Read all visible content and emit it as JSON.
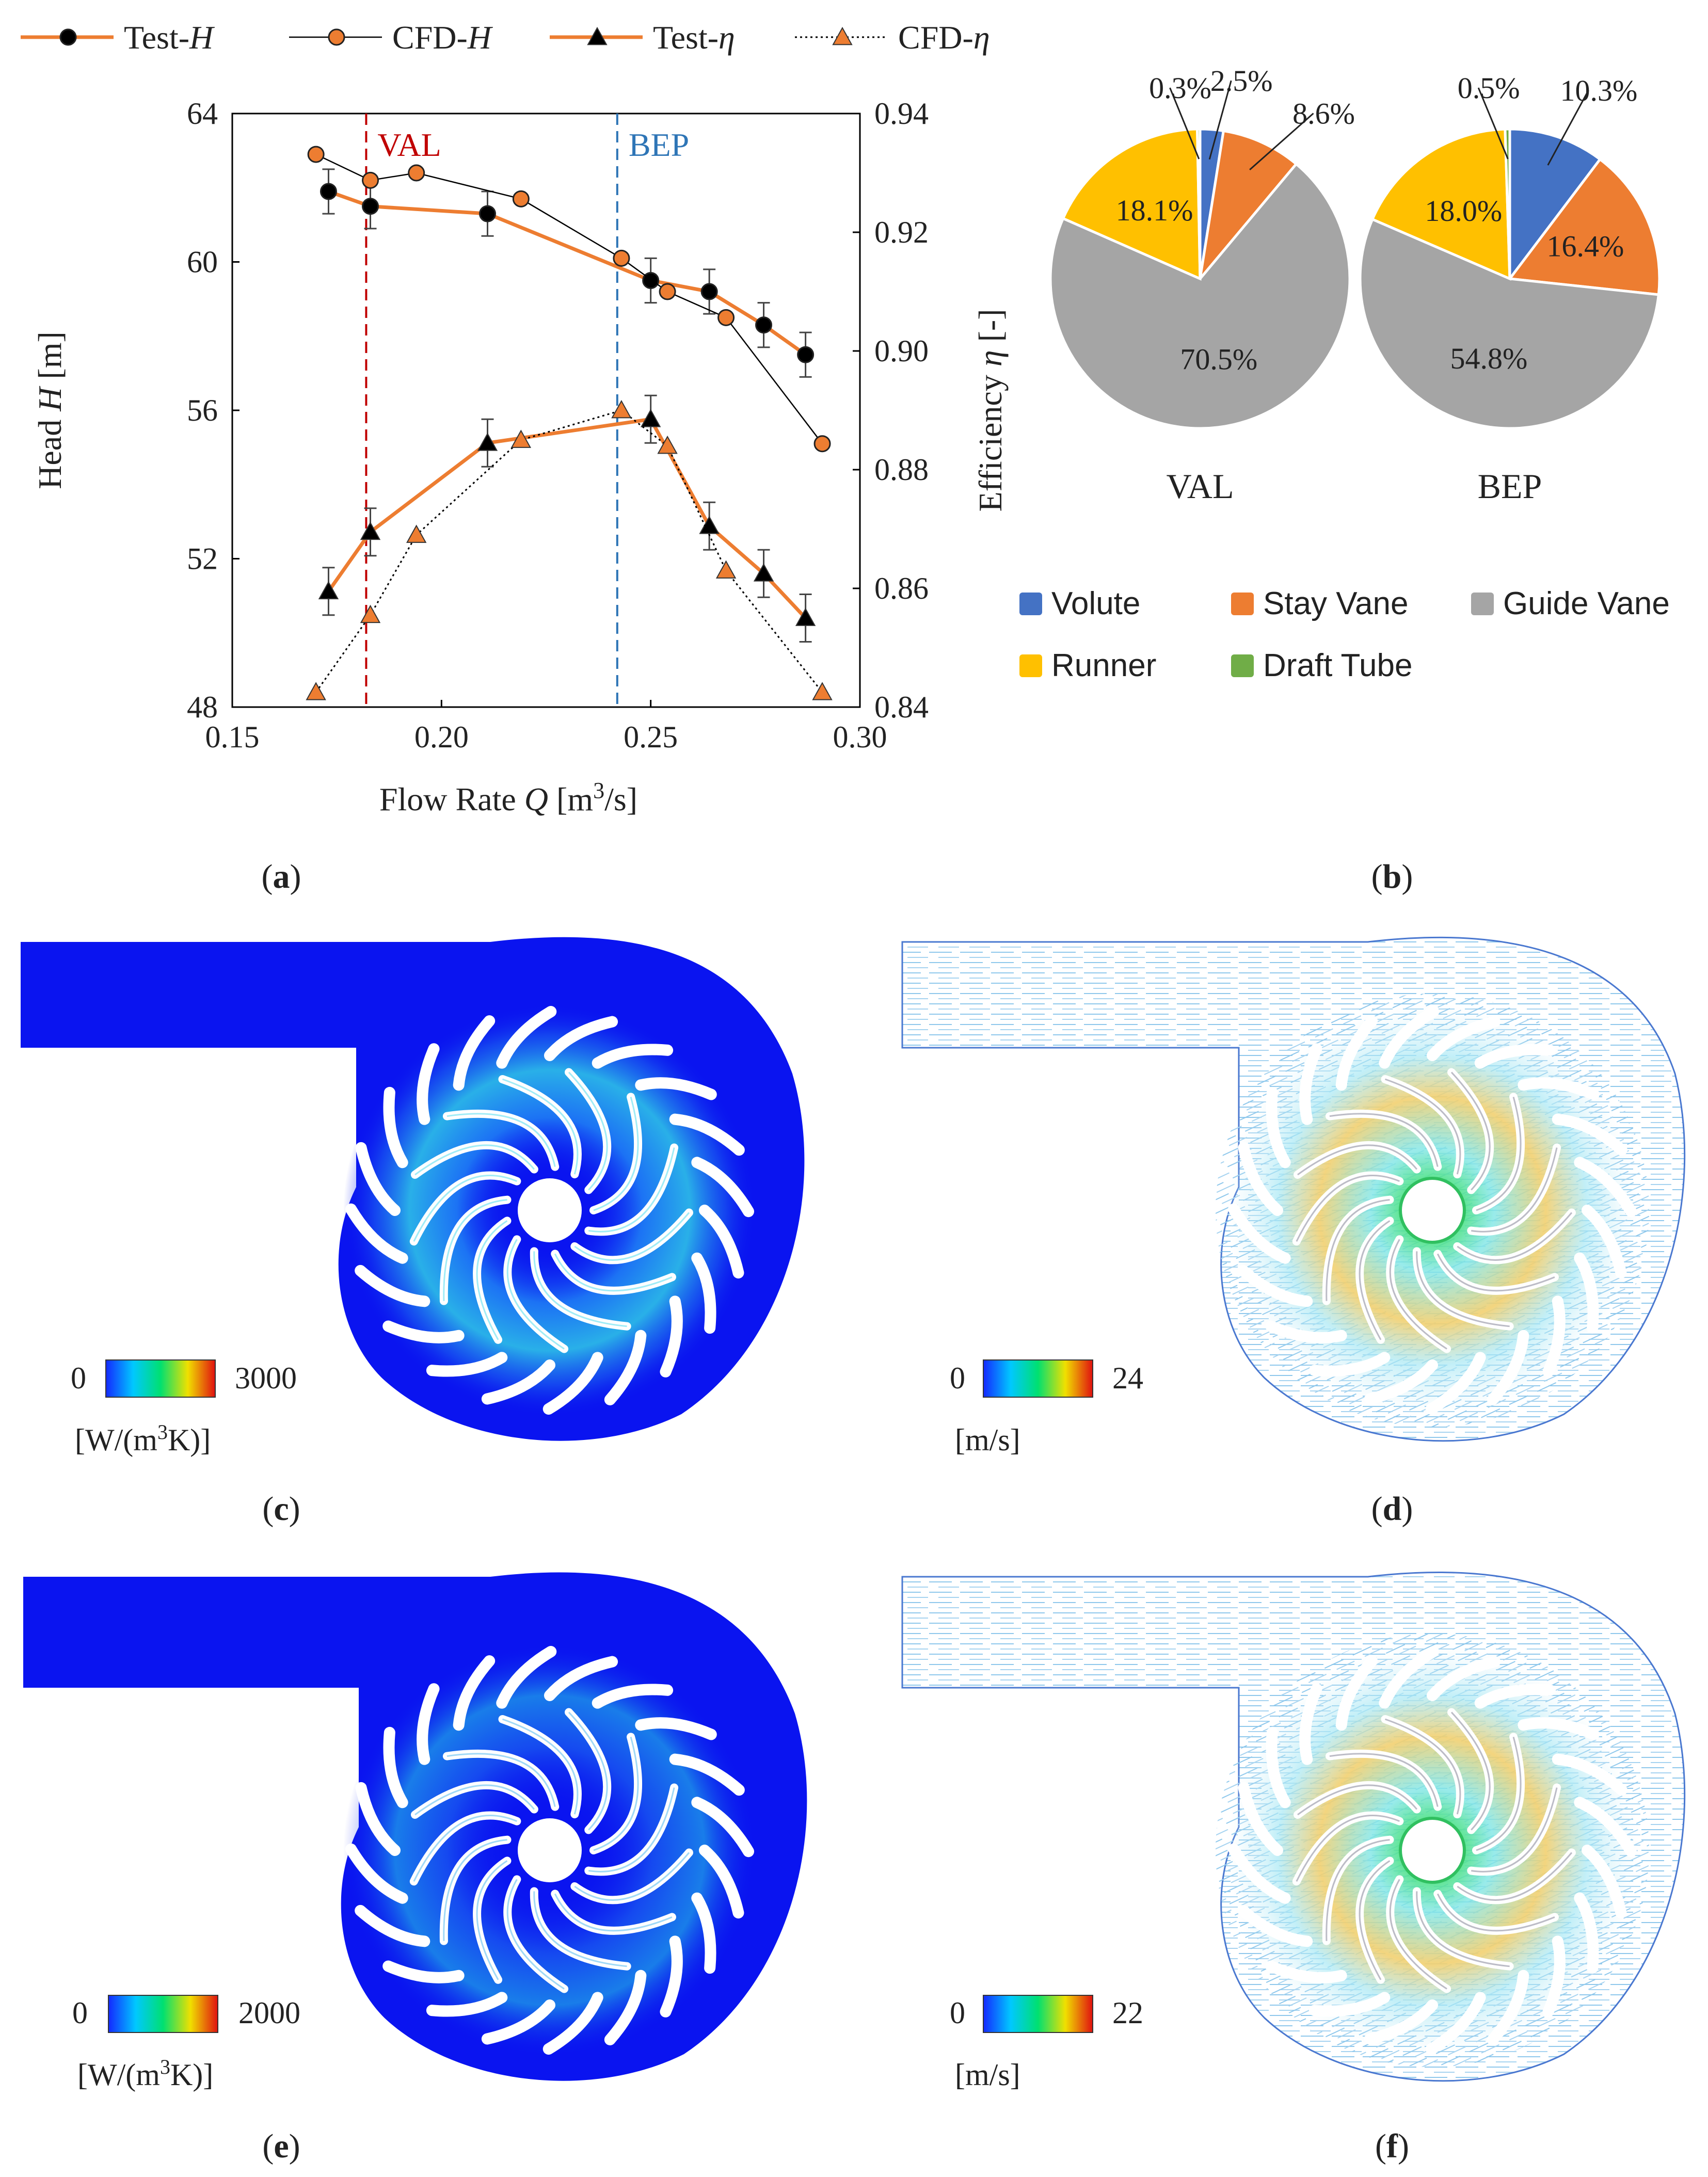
{
  "panels": {
    "a": "a",
    "b": "b",
    "c": "c",
    "d": "d",
    "e": "e",
    "f": "f"
  },
  "colors": {
    "orange": "#ED7D31",
    "black": "#000000",
    "val_line": "#C00000",
    "bep_line": "#2E75B6",
    "volute": "#4472C4",
    "stay_vane": "#ED7D31",
    "guide_vane": "#A5A5A5",
    "runner": "#FFC000",
    "draft_tube": "#70AD47",
    "contour_bg": "#0A14F0"
  },
  "chart_data": [
    {
      "type": "line",
      "panel": "a",
      "xlabel_prefix": "Flow Rate ",
      "xlabel_var": "Q",
      "xlabel_unit": " [m",
      "xlabel_sup": "3",
      "xlabel_end": "/s]",
      "ylabel_prefix": "Head ",
      "ylabel_var": "H",
      "ylabel_unit": " [m]",
      "y2label_prefix": "Efficiency ",
      "y2label_var": "η",
      "y2label_unit": " [-]",
      "xlim": [
        0.15,
        0.3
      ],
      "ylim": [
        48,
        64
      ],
      "y2lim": [
        0.84,
        0.94
      ],
      "xticks": [
        "0.15",
        "0.20",
        "0.25",
        "0.30"
      ],
      "yticks": [
        "48",
        "52",
        "56",
        "60",
        "64"
      ],
      "y2ticks": [
        "0.84",
        "0.86",
        "0.88",
        "0.90",
        "0.92",
        "0.94"
      ],
      "vlines": [
        {
          "label": "VAL",
          "x": 0.182
        },
        {
          "label": "BEP",
          "x": 0.242
        }
      ],
      "series": [
        {
          "name": "Test-H",
          "name_base": "Test-",
          "name_var": "H",
          "axis": "left",
          "marker": "circle-black",
          "line": "orange-solid",
          "x": [
            0.173,
            0.183,
            0.211,
            0.25,
            0.264,
            0.277,
            0.287
          ],
          "y": [
            61.9,
            61.5,
            61.3,
            59.5,
            59.2,
            58.3,
            57.5
          ],
          "err": [
            0.6,
            0.6,
            0.6,
            0.6,
            0.6,
            0.6,
            0.6
          ]
        },
        {
          "name": "CFD-H",
          "name_base": "CFD-",
          "name_var": "H",
          "axis": "left",
          "marker": "circle-orange",
          "line": "black-thin",
          "x": [
            0.17,
            0.183,
            0.194,
            0.219,
            0.243,
            0.254,
            0.268,
            0.291
          ],
          "y": [
            62.9,
            62.2,
            62.4,
            61.7,
            60.1,
            59.2,
            58.5,
            55.1
          ]
        },
        {
          "name": "Test-η",
          "name_base": "Test-",
          "name_var": "η",
          "axis": "right",
          "marker": "triangle-black",
          "line": "orange-solid",
          "x": [
            0.173,
            0.183,
            0.211,
            0.25,
            0.264,
            0.277,
            0.287
          ],
          "y": [
            0.8595,
            0.8695,
            0.8845,
            0.8885,
            0.8705,
            0.8625,
            0.855
          ],
          "err": [
            0.004,
            0.004,
            0.004,
            0.004,
            0.004,
            0.004,
            0.004
          ]
        },
        {
          "name": "CFD-η",
          "name_base": "CFD-",
          "name_var": "η",
          "axis": "right",
          "marker": "triangle-orange",
          "line": "black-dotted",
          "x": [
            0.17,
            0.183,
            0.194,
            0.219,
            0.243,
            0.254,
            0.268,
            0.291
          ],
          "y": [
            0.8425,
            0.8555,
            0.869,
            0.885,
            0.89,
            0.884,
            0.863,
            0.8425
          ]
        }
      ]
    },
    {
      "type": "pie",
      "panel": "b",
      "charts": [
        {
          "title": "VAL",
          "values": [
            2.5,
            8.6,
            70.5,
            18.1,
            0.3
          ],
          "labels": [
            "2.5%",
            "8.6%",
            "70.5%",
            "18.1%",
            "0.3%"
          ]
        },
        {
          "title": "BEP",
          "values": [
            10.3,
            16.4,
            54.8,
            18.0,
            0.5
          ],
          "labels": [
            "10.3%",
            "16.4%",
            "54.8%",
            "18.0%",
            "0.5%"
          ]
        }
      ],
      "legend": [
        "Volute",
        "Stay Vane",
        "Guide Vane",
        "Runner",
        "Draft Tube"
      ]
    }
  ],
  "contours": [
    {
      "panel": "c",
      "kind": "heat",
      "min": "0",
      "max": "3000",
      "unit_pre": "[W/(m",
      "unit_sup": "3",
      "unit_post": "K)]"
    },
    {
      "panel": "d",
      "kind": "vector",
      "min": "0",
      "max": "24",
      "unit": "[m/s]"
    },
    {
      "panel": "e",
      "kind": "heat",
      "min": "0",
      "max": "2000",
      "unit_pre": "[W/(m",
      "unit_sup": "3",
      "unit_post": "K)]"
    },
    {
      "panel": "f",
      "kind": "vector",
      "min": "0",
      "max": "22",
      "unit": "[m/s]"
    }
  ]
}
